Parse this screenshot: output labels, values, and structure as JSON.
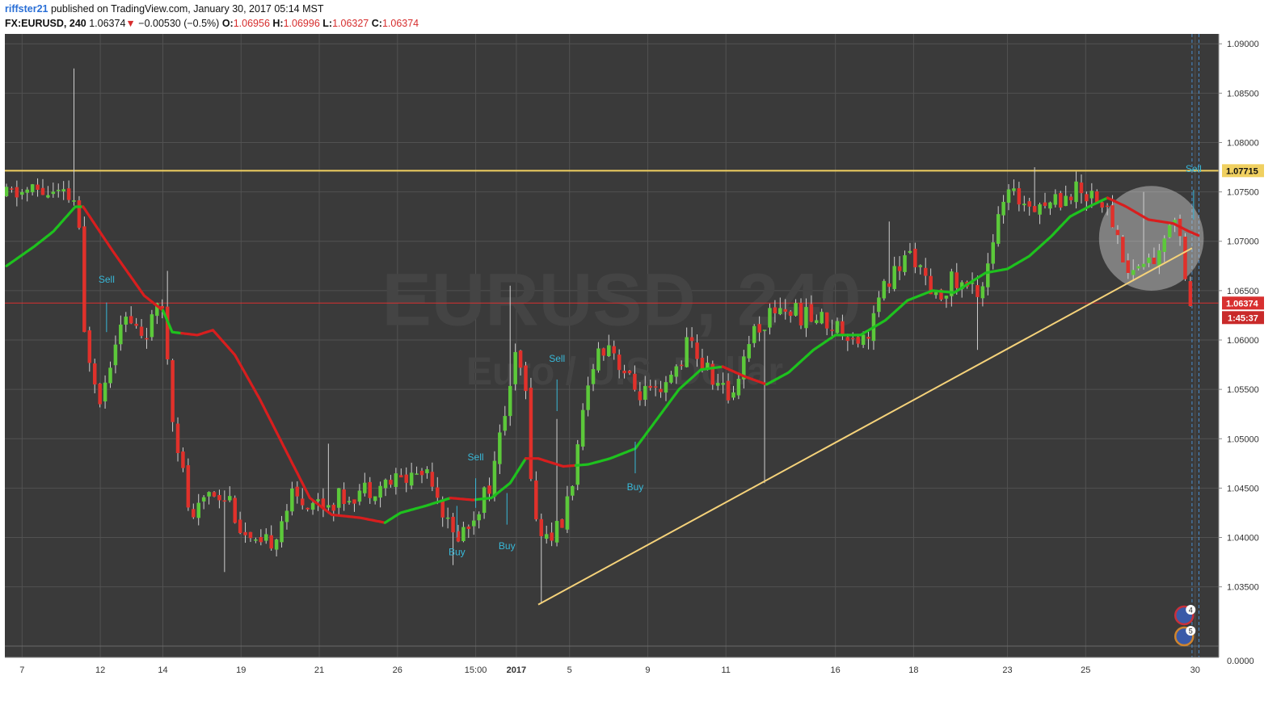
{
  "header": {
    "author": "riffster21",
    "published_text": "published on TradingView.com, January 30, 2017 05:14 MST",
    "symbol": "FX:EURUSD, 240",
    "last": "1.06374",
    "change_arrow": "▼",
    "change": "−0.00530 (−0.5%)",
    "o_label": "O:",
    "o_value": "1.06956",
    "h_label": "H:",
    "h_value": "1.06996",
    "l_label": "L:",
    "l_value": "1.06327",
    "c_label": "C:",
    "c_value": "1.06374"
  },
  "watermark": {
    "symbol": "EURUSD, 240",
    "name": "Euro / U.S. Dollar"
  },
  "colors": {
    "background": "#3a3a3a",
    "grid": "#525252",
    "up": "#5cc93a",
    "down": "#e0312b",
    "ma_up": "#1ec21e",
    "ma_down": "#d81e1e",
    "level": "#f0d060",
    "trendline": "#f5d27a",
    "signal": "#38b8d8"
  },
  "chart_data": {
    "type": "candlestick",
    "timeframe": "240",
    "ylim": [
      1.029,
      1.091
    ],
    "y_ticks": [
      "1.09000",
      "1.08500",
      "1.08000",
      "1.07500",
      "1.07000",
      "1.06500",
      "1.06000",
      "1.05500",
      "1.05000",
      "1.04500",
      "1.04000",
      "1.03500"
    ],
    "y_tick_values": [
      1.09,
      1.085,
      1.08,
      1.075,
      1.07,
      1.065,
      1.06,
      1.055,
      1.05,
      1.045,
      1.04,
      1.035
    ],
    "volume_axis_label": "0.0000",
    "x_ticks": [
      {
        "label": "7",
        "day": 0.5
      },
      {
        "label": "12",
        "day": 3
      },
      {
        "label": "14",
        "day": 5
      },
      {
        "label": "19",
        "day": 7.5
      },
      {
        "label": "21",
        "day": 10
      },
      {
        "label": "26",
        "day": 12.5
      },
      {
        "label": "15:00",
        "day": 15
      },
      {
        "label": "2017",
        "day": 16.3,
        "bold": true
      },
      {
        "label": "5",
        "day": 18
      },
      {
        "label": "9",
        "day": 20.5
      },
      {
        "label": "11",
        "day": 23
      },
      {
        "label": "16",
        "day": 26.5
      },
      {
        "label": "18",
        "day": 29
      },
      {
        "label": "23",
        "day": 32
      },
      {
        "label": "25",
        "day": 34.5
      },
      {
        "label": "30",
        "day": 38
      }
    ],
    "ohlc_anchor_path": [
      [
        0,
        1.0745
      ],
      [
        1.1,
        1.0752
      ],
      [
        2.45,
        1.074
      ],
      [
        2.6,
        1.061
      ],
      [
        3.2,
        1.054
      ],
      [
        3.8,
        1.0625
      ],
      [
        4.55,
        1.0605
      ],
      [
        5.25,
        1.064
      ],
      [
        5.35,
        1.055
      ],
      [
        6.1,
        1.041
      ],
      [
        6.6,
        1.045
      ],
      [
        7.3,
        1.044
      ],
      [
        7.7,
        1.0405
      ],
      [
        8.2,
        1.0385
      ],
      [
        8.7,
        1.04
      ],
      [
        9.25,
        1.044
      ],
      [
        10.4,
        1.0435
      ],
      [
        11.7,
        1.045
      ],
      [
        12.9,
        1.046
      ],
      [
        13.7,
        1.047
      ],
      [
        14.4,
        1.04
      ],
      [
        14.9,
        1.041
      ],
      [
        15.7,
        1.046
      ],
      [
        16.3,
        1.056
      ],
      [
        16.5,
        1.0585
      ],
      [
        16.85,
        1.053
      ],
      [
        17.0,
        1.042
      ],
      [
        17.35,
        1.04
      ],
      [
        17.9,
        1.041
      ],
      [
        18.4,
        1.048
      ],
      [
        18.9,
        1.058
      ],
      [
        19.4,
        1.06
      ],
      [
        20.2,
        1.055
      ],
      [
        21.1,
        1.054
      ],
      [
        22.0,
        1.06
      ],
      [
        22.4,
        1.0575
      ],
      [
        23.3,
        1.054
      ],
      [
        24.0,
        1.061
      ],
      [
        24.3,
        1.0615
      ],
      [
        24.8,
        1.0635
      ],
      [
        25.6,
        1.0625
      ],
      [
        26.3,
        1.062
      ],
      [
        27.6,
        1.06
      ],
      [
        28.2,
        1.065
      ],
      [
        28.6,
        1.067
      ],
      [
        29.15,
        1.069
      ],
      [
        29.8,
        1.0635
      ],
      [
        30.3,
        1.066
      ],
      [
        31.3,
        1.065
      ],
      [
        31.6,
        1.069
      ],
      [
        32.1,
        1.0745
      ],
      [
        32.7,
        1.0742
      ],
      [
        33.5,
        1.0738
      ],
      [
        34.3,
        1.0752
      ],
      [
        35.0,
        1.0748
      ],
      [
        35.6,
        1.0715
      ],
      [
        36.0,
        1.0668
      ],
      [
        36.6,
        1.068
      ],
      [
        37.1,
        1.0685
      ],
      [
        37.4,
        1.073
      ],
      [
        37.55,
        1.0727
      ],
      [
        37.75,
        1.0695
      ],
      [
        38.0,
        1.0637
      ]
    ],
    "wick_spikes": [
      {
        "day": 2.1,
        "high": 1.0875
      },
      {
        "day": 5.15,
        "high": 1.067
      },
      {
        "day": 7.0,
        "low": 1.0365
      },
      {
        "day": 10.3,
        "high": 1.0495
      },
      {
        "day": 14.25,
        "low": 1.0372
      },
      {
        "day": 16.15,
        "high": 1.0655
      },
      {
        "day": 17.1,
        "low": 1.0333
      },
      {
        "day": 17.65,
        "high": 1.052
      },
      {
        "day": 24.3,
        "low": 1.0455
      },
      {
        "day": 28.3,
        "high": 1.072
      },
      {
        "day": 32.9,
        "high": 1.0775
      },
      {
        "day": 36.3,
        "high": 1.075
      },
      {
        "day": 31.0,
        "low": 1.059
      }
    ],
    "moving_average_path": [
      [
        0,
        1.0675
      ],
      [
        0.9,
        1.0695
      ],
      [
        1.5,
        1.071
      ],
      [
        2.2,
        1.0735
      ],
      [
        2.45,
        1.0735
      ],
      [
        3.4,
        1.069
      ],
      [
        4.4,
        1.0645
      ],
      [
        5.0,
        1.063
      ],
      [
        5.3,
        1.0608
      ],
      [
        6.1,
        1.0605
      ],
      [
        6.6,
        1.061
      ],
      [
        7.3,
        1.0585
      ],
      [
        8.1,
        1.054
      ],
      [
        8.9,
        1.049
      ],
      [
        9.7,
        1.044
      ],
      [
        10.4,
        1.0423
      ],
      [
        11.3,
        1.042
      ],
      [
        12.1,
        1.0415
      ],
      [
        12.6,
        1.0425
      ],
      [
        13.4,
        1.0432
      ],
      [
        14.2,
        1.044
      ],
      [
        14.9,
        1.0438
      ],
      [
        15.5,
        1.044
      ],
      [
        16.1,
        1.0455
      ],
      [
        16.6,
        1.048
      ],
      [
        17.0,
        1.048
      ],
      [
        17.8,
        1.0472
      ],
      [
        18.6,
        1.0474
      ],
      [
        19.3,
        1.048
      ],
      [
        20.1,
        1.049
      ],
      [
        20.8,
        1.052
      ],
      [
        21.5,
        1.055
      ],
      [
        22.2,
        1.057
      ],
      [
        22.9,
        1.0573
      ],
      [
        23.6,
        1.0563
      ],
      [
        24.3,
        1.0555
      ],
      [
        25.0,
        1.0567
      ],
      [
        25.8,
        1.059
      ],
      [
        26.5,
        1.0605
      ],
      [
        27.3,
        1.0605
      ],
      [
        28.1,
        1.062
      ],
      [
        28.8,
        1.064
      ],
      [
        29.6,
        1.065
      ],
      [
        30.3,
        1.0648
      ],
      [
        31.3,
        1.0668
      ],
      [
        32.0,
        1.0672
      ],
      [
        32.7,
        1.0685
      ],
      [
        33.4,
        1.0705
      ],
      [
        34.0,
        1.0725
      ],
      [
        34.6,
        1.0735
      ],
      [
        35.2,
        1.0744
      ],
      [
        35.8,
        1.0735
      ],
      [
        36.5,
        1.0722
      ],
      [
        37.3,
        1.0718
      ],
      [
        37.8,
        1.071
      ],
      [
        38.1,
        1.0706
      ]
    ],
    "ma_trend_segments": [
      {
        "from": 0,
        "to": 2.45,
        "trend": "up"
      },
      {
        "from": 2.45,
        "to": 5.0,
        "trend": "down"
      },
      {
        "from": 5.0,
        "to": 5.6,
        "trend": "up"
      },
      {
        "from": 5.6,
        "to": 12.1,
        "trend": "down"
      },
      {
        "from": 12.1,
        "to": 14.2,
        "trend": "up"
      },
      {
        "from": 14.2,
        "to": 15.0,
        "trend": "down"
      },
      {
        "from": 15.0,
        "to": 16.6,
        "trend": "up"
      },
      {
        "from": 16.6,
        "to": 18.2,
        "trend": "down"
      },
      {
        "from": 18.2,
        "to": 22.9,
        "trend": "up"
      },
      {
        "from": 22.9,
        "to": 24.3,
        "trend": "down"
      },
      {
        "from": 24.3,
        "to": 35.2,
        "trend": "up"
      },
      {
        "from": 35.2,
        "to": 38.1,
        "trend": "down"
      }
    ],
    "horizontal_level": {
      "value": 1.07715,
      "label": "1.07715"
    },
    "current_price": {
      "value": 1.06374,
      "label": "1.06374",
      "countdown": "1:45:37"
    },
    "trendline": {
      "start": {
        "day": 17.0,
        "price": 1.0332
      },
      "end": {
        "day": 37.9,
        "price": 1.0693
      }
    },
    "highlight_circle": {
      "day": 36.6,
      "price": 1.0703,
      "radius_price": 0.0053
    },
    "signals": [
      {
        "text": "Sell",
        "day": 3.2,
        "price": 1.0658,
        "line_top": 1.0638,
        "line_bottom": 1.0608
      },
      {
        "text": "Sell",
        "day": 15.0,
        "price": 1.0478,
        "line_top": 1.046,
        "line_bottom": 1.043
      },
      {
        "text": "Sell",
        "day": 17.6,
        "price": 1.0578,
        "line_top": 1.056,
        "line_bottom": 1.0528
      },
      {
        "text": "Sell",
        "day": 37.95,
        "price": 1.077,
        "line_top": 1.0752,
        "line_bottom": 1.0722
      },
      {
        "text": "Buy",
        "day": 14.4,
        "price": 1.0382,
        "line_top": 1.0432,
        "line_bottom": 1.04
      },
      {
        "text": "Buy",
        "day": 16.0,
        "price": 1.0388,
        "line_top": 1.0445,
        "line_bottom": 1.0413
      },
      {
        "text": "Buy",
        "day": 20.1,
        "price": 1.0448,
        "line_top": 1.0497,
        "line_bottom": 1.0465
      }
    ],
    "vertical_markers_day": [
      37.9,
      38.12
    ],
    "event_badges": [
      {
        "text": "4"
      },
      {
        "text": "5"
      }
    ]
  }
}
